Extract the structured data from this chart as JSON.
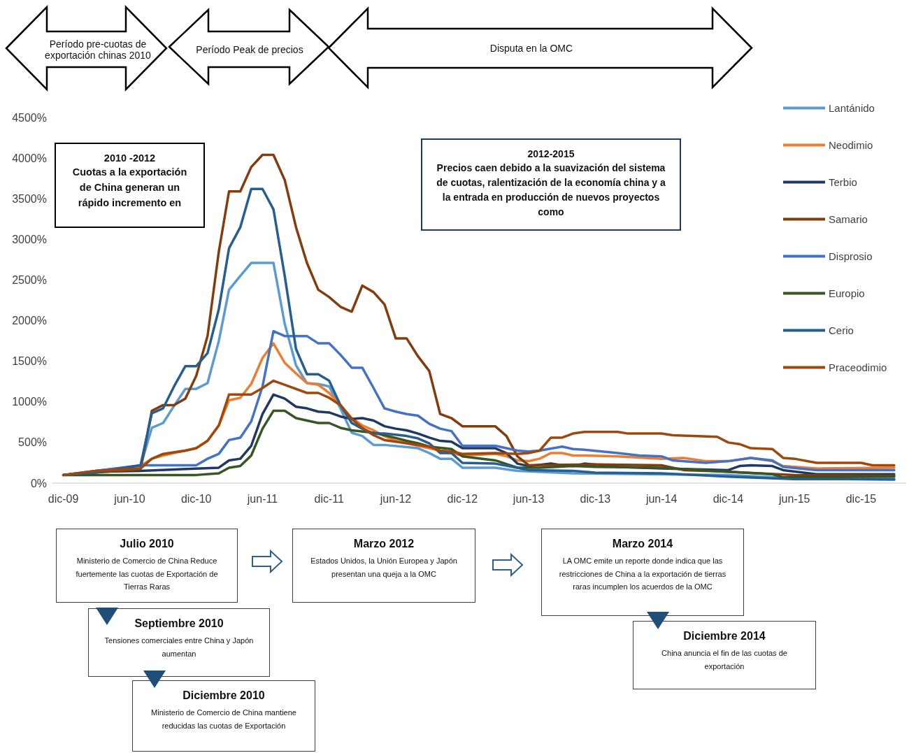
{
  "chart_data": {
    "type": "line",
    "annotations": [
      "Período pre-cuotas de exportación chinas 2010",
      "Período Peak de precios",
      "Disputa en la OMC",
      "2010 -2012\nCuotas a la exportación de China generan un rápido incremento en",
      "2012-2015\nPrecios caen debido a la suavización del sistema de cuotas, ralentización de la economía china y a la entrada en producción de nuevos proyectos como",
      "Julio 2010\nMinisterio de Comercio de China Reduce fuertemente las cuotas de Exportación de Tierras Raras",
      "Septiembre 2010\nTensiones comerciales entre China y Japón aumentan",
      "Diciembre 2010\nMinisterio de Comercio de China mantiene reducidas las cuotas de Exportación",
      "Marzo 2012\nEstados Unidos, la Unión Europea y Japón presentan una queja a la OMC",
      "Marzo 2014\nLA OMC emite un reporte donde indica que las restricciones de China a la exportación de tierras raras incumplen los acuerdos de la OMC",
      "Diciembre 2014\nChina anuncia el fin de las cuotas de exportación"
    ],
    "xlim": [
      "2009-11",
      "2016-04"
    ],
    "xticks": [
      {
        "value": "2009-12",
        "label": "dic-09"
      },
      {
        "value": "2010-06",
        "label": "jun-10"
      },
      {
        "value": "2010-12",
        "label": "dic-10"
      },
      {
        "value": "2011-06",
        "label": "jun-11"
      },
      {
        "value": "2011-12",
        "label": "dic-11"
      },
      {
        "value": "2012-06",
        "label": "jun-12"
      },
      {
        "value": "2012-12",
        "label": "dic-12"
      },
      {
        "value": "2013-06",
        "label": "jun-13"
      },
      {
        "value": "2013-12",
        "label": "dic-13"
      },
      {
        "value": "2014-06",
        "label": "jun-14"
      },
      {
        "value": "2014-12",
        "label": "dic-14"
      },
      {
        "value": "2015-06",
        "label": "jun-15"
      },
      {
        "value": "2015-12",
        "label": "dic-15"
      }
    ],
    "ylim": [
      0,
      4500
    ],
    "yticks": [
      {
        "value": 0,
        "label": "0%"
      },
      {
        "value": 500,
        "label": "500%"
      },
      {
        "value": 1000,
        "label": "1000%"
      },
      {
        "value": 1500,
        "label": "1500%"
      },
      {
        "value": 2000,
        "label": "2000%"
      },
      {
        "value": 2500,
        "label": "2500%"
      },
      {
        "value": 3000,
        "label": "3000%"
      },
      {
        "value": 3500,
        "label": "3500%"
      },
      {
        "value": 4000,
        "label": "4000%"
      },
      {
        "value": 4500,
        "label": "4500%"
      }
    ],
    "legend": "right",
    "marker": "none",
    "line_style": "solid",
    "series": [
      {
        "name": "Lantánido",
        "color": "#5b9bd5",
        "x": [
          "2009-12",
          "2010-03",
          "2010-07",
          "2010-08",
          "2010-09",
          "2010-10",
          "2010-11",
          "2010-12",
          "2011-01",
          "2011-02",
          "2011-03",
          "2011-04",
          "2011-05",
          "2011-07",
          "2011-08",
          "2011-09",
          "2011-10",
          "2011-11",
          "2011-12",
          "2012-01",
          "2012-02",
          "2012-03",
          "2012-04",
          "2012-05",
          "2012-08",
          "2012-09",
          "2012-10",
          "2012-11",
          "2012-12",
          "2013-03",
          "2013-05",
          "2013-10",
          "2014-12",
          "2015-06",
          "2016-03"
        ],
        "values": [
          100,
          150,
          210,
          680,
          740,
          950,
          1160,
          1160,
          1230,
          1750,
          2380,
          2550,
          2710,
          2710,
          1960,
          1450,
          1230,
          1220,
          1190,
          920,
          620,
          580,
          470,
          470,
          430,
          370,
          300,
          300,
          190,
          190,
          150,
          120,
          100,
          60,
          40
        ]
      },
      {
        "name": "Neodimio",
        "color": "#ed7d31",
        "x": [
          "2009-12",
          "2010-03",
          "2010-07",
          "2010-08",
          "2010-09",
          "2010-11",
          "2010-12",
          "2011-01",
          "2011-02",
          "2011-03",
          "2011-04",
          "2011-05",
          "2011-06",
          "2011-07",
          "2011-08",
          "2011-09",
          "2011-10",
          "2011-11",
          "2011-12",
          "2012-01",
          "2012-02",
          "2012-03",
          "2012-04",
          "2012-05",
          "2012-06",
          "2012-08",
          "2012-10",
          "2012-12",
          "2013-03",
          "2013-04",
          "2013-05",
          "2013-06",
          "2013-07",
          "2013-08",
          "2013-09",
          "2013-10",
          "2013-11",
          "2014-02",
          "2014-06",
          "2014-08",
          "2014-10",
          "2014-12",
          "2015-02",
          "2015-04",
          "2015-05",
          "2015-08",
          "2016-03"
        ],
        "values": [
          100,
          150,
          210,
          300,
          340,
          400,
          430,
          520,
          710,
          1020,
          1050,
          1220,
          1540,
          1720,
          1480,
          1350,
          1230,
          1210,
          1110,
          960,
          800,
          710,
          650,
          580,
          520,
          460,
          400,
          340,
          360,
          330,
          280,
          270,
          300,
          370,
          370,
          340,
          340,
          330,
          300,
          310,
          270,
          270,
          310,
          270,
          210,
          180,
          190
        ]
      },
      {
        "name": "Terbio",
        "color": "#1f3864",
        "x": [
          "2009-12",
          "2010-03",
          "2010-07",
          "2011-02",
          "2011-03",
          "2011-04",
          "2011-05",
          "2011-06",
          "2011-07",
          "2011-08",
          "2011-09",
          "2011-10",
          "2011-11",
          "2011-12",
          "2012-01",
          "2012-02",
          "2012-03",
          "2012-04",
          "2012-05",
          "2012-06",
          "2012-07",
          "2012-08",
          "2012-09",
          "2012-10",
          "2012-11",
          "2012-12",
          "2013-03",
          "2013-04",
          "2013-05",
          "2013-06",
          "2013-08",
          "2013-09",
          "2013-10",
          "2013-11",
          "2014-02",
          "2014-06",
          "2014-09",
          "2014-12",
          "2015-01",
          "2015-02",
          "2015-04",
          "2015-05",
          "2015-08",
          "2016-03"
        ],
        "values": [
          100,
          140,
          150,
          190,
          280,
          300,
          460,
          850,
          1090,
          1040,
          940,
          920,
          880,
          870,
          820,
          790,
          800,
          770,
          700,
          670,
          650,
          610,
          560,
          520,
          510,
          430,
          430,
          370,
          240,
          210,
          240,
          220,
          210,
          240,
          200,
          180,
          170,
          160,
          210,
          220,
          210,
          160,
          110,
          110
        ]
      },
      {
        "name": "Samario",
        "color": "#843c0c",
        "x": [
          "2009-12",
          "2010-05",
          "2010-07",
          "2010-08",
          "2010-09",
          "2010-10",
          "2010-11",
          "2010-12",
          "2011-01",
          "2011-02",
          "2011-03",
          "2011-04",
          "2011-05",
          "2011-06",
          "2011-07",
          "2011-08",
          "2011-09",
          "2011-10",
          "2011-11",
          "2011-12",
          "2012-01",
          "2012-02",
          "2012-03",
          "2012-04",
          "2012-05",
          "2012-06",
          "2012-07",
          "2012-08",
          "2012-09",
          "2012-10",
          "2012-11",
          "2012-12",
          "2013-03",
          "2013-04",
          "2013-05",
          "2013-06",
          "2013-12",
          "2014-06",
          "2014-08",
          "2014-12",
          "2015-06",
          "2016-03"
        ],
        "values": [
          100,
          150,
          170,
          890,
          960,
          960,
          1040,
          1320,
          1810,
          2850,
          3590,
          3590,
          3890,
          4040,
          4040,
          3730,
          3150,
          2710,
          2380,
          2290,
          2170,
          2110,
          2430,
          2350,
          2200,
          1780,
          1780,
          1560,
          1380,
          850,
          800,
          700,
          700,
          580,
          330,
          220,
          230,
          220,
          160,
          140,
          100,
          90
        ]
      },
      {
        "name": "Disprosio",
        "color": "#4472c4",
        "x": [
          "2009-12",
          "2010-03",
          "2010-07",
          "2010-12",
          "2011-01",
          "2011-02",
          "2011-03",
          "2011-04",
          "2011-05",
          "2011-06",
          "2011-07",
          "2011-08",
          "2011-10",
          "2011-11",
          "2011-12",
          "2012-01",
          "2012-02",
          "2012-03",
          "2012-04",
          "2012-05",
          "2012-06",
          "2012-07",
          "2012-08",
          "2012-09",
          "2012-10",
          "2012-11",
          "2012-12",
          "2013-03",
          "2013-05",
          "2013-06",
          "2013-07",
          "2013-09",
          "2013-10",
          "2013-11",
          "2014-02",
          "2014-04",
          "2014-06",
          "2014-07",
          "2014-10",
          "2014-12",
          "2015-02",
          "2015-04",
          "2015-05",
          "2015-08",
          "2015-11",
          "2016-03"
        ],
        "values": [
          100,
          150,
          220,
          220,
          300,
          360,
          530,
          560,
          760,
          1190,
          1870,
          1810,
          1810,
          1720,
          1720,
          1580,
          1420,
          1420,
          1170,
          920,
          880,
          850,
          830,
          730,
          670,
          640,
          460,
          460,
          400,
          390,
          400,
          450,
          420,
          410,
          370,
          340,
          330,
          280,
          250,
          270,
          310,
          280,
          200,
          160,
          160,
          160
        ]
      },
      {
        "name": "Europio",
        "color": "#375623",
        "x": [
          "2009-12",
          "2010-12",
          "2011-02",
          "2011-03",
          "2011-04",
          "2011-05",
          "2011-06",
          "2011-07",
          "2011-08",
          "2011-09",
          "2011-10",
          "2011-11",
          "2011-12",
          "2012-01",
          "2012-02",
          "2012-04",
          "2012-05",
          "2012-07",
          "2012-08",
          "2012-09",
          "2012-11",
          "2012-12",
          "2013-03",
          "2013-05",
          "2013-07",
          "2013-10",
          "2013-12",
          "2014-06",
          "2014-12",
          "2015-04",
          "2015-05",
          "2016-03"
        ],
        "values": [
          100,
          100,
          120,
          190,
          210,
          340,
          670,
          890,
          890,
          800,
          770,
          740,
          740,
          680,
          650,
          620,
          590,
          520,
          490,
          450,
          420,
          330,
          280,
          190,
          190,
          210,
          200,
          190,
          140,
          110,
          70,
          80
        ]
      },
      {
        "name": "Cerio",
        "color": "#255e91",
        "x": [
          "2009-12",
          "2010-03",
          "2010-07",
          "2010-08",
          "2010-09",
          "2010-10",
          "2010-11",
          "2010-12",
          "2011-01",
          "2011-02",
          "2011-03",
          "2011-04",
          "2011-05",
          "2011-06",
          "2011-07",
          "2011-08",
          "2011-09",
          "2011-10",
          "2011-11",
          "2011-12",
          "2012-01",
          "2012-02",
          "2012-03",
          "2012-04",
          "2012-05",
          "2012-07",
          "2012-08",
          "2012-09",
          "2012-10",
          "2012-11",
          "2012-12",
          "2013-03",
          "2013-05",
          "2013-06",
          "2013-10",
          "2013-12",
          "2014-06",
          "2014-12",
          "2015-06",
          "2016-03"
        ],
        "values": [
          100,
          130,
          220,
          860,
          920,
          1190,
          1440,
          1440,
          1600,
          2140,
          2890,
          3150,
          3620,
          3620,
          3370,
          2550,
          1650,
          1340,
          1340,
          1260,
          960,
          740,
          670,
          610,
          610,
          580,
          550,
          490,
          370,
          370,
          250,
          240,
          190,
          160,
          150,
          130,
          120,
          80,
          50,
          50
        ]
      },
      {
        "name": "Praceodimio",
        "color": "#9e480e",
        "x": [
          "2009-12",
          "2010-03",
          "2010-07",
          "2010-08",
          "2010-09",
          "2010-11",
          "2010-12",
          "2011-01",
          "2011-02",
          "2011-03",
          "2011-05",
          "2011-06",
          "2011-07",
          "2011-08",
          "2011-10",
          "2011-11",
          "2011-12",
          "2012-01",
          "2012-02",
          "2012-03",
          "2012-04",
          "2012-05",
          "2012-07",
          "2012-09",
          "2012-10",
          "2012-11",
          "2012-12",
          "2013-03",
          "2013-05",
          "2013-06",
          "2013-07",
          "2013-08",
          "2013-09",
          "2013-10",
          "2013-11",
          "2014-02",
          "2014-03",
          "2014-06",
          "2014-07",
          "2014-11",
          "2014-12",
          "2015-01",
          "2015-02",
          "2015-04",
          "2015-05",
          "2015-06",
          "2015-08",
          "2015-12",
          "2016-01",
          "2016-03"
        ],
        "values": [
          100,
          150,
          180,
          300,
          360,
          400,
          430,
          520,
          710,
          1090,
          1090,
          1170,
          1260,
          1210,
          1110,
          1110,
          1050,
          960,
          790,
          680,
          590,
          530,
          490,
          450,
          400,
          390,
          360,
          370,
          360,
          370,
          400,
          560,
          560,
          610,
          630,
          630,
          610,
          610,
          590,
          570,
          500,
          480,
          430,
          420,
          310,
          300,
          250,
          250,
          220,
          220
        ]
      }
    ]
  }
}
